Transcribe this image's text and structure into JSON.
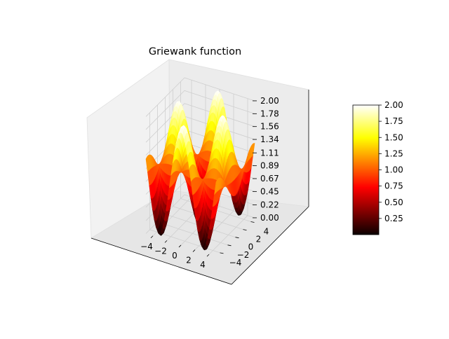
{
  "chart_data": {
    "type": "surface",
    "title": "Griewank function",
    "function": "1 + (x^2 + y^2)/4000 - cos(x)*cos(y/sqrt(2))",
    "x_range": [
      -5,
      5
    ],
    "y_range": [
      -5,
      5
    ],
    "grid": true,
    "colormap": "hot",
    "x_ticks": [
      "−4",
      "−2",
      "0",
      "2",
      "4"
    ],
    "y_ticks": [
      "−4",
      "−2",
      "0",
      "2",
      "4"
    ],
    "z_ticks": [
      "0.00",
      "0.22",
      "0.45",
      "0.67",
      "0.89",
      "1.11",
      "1.34",
      "1.56",
      "1.78",
      "2.00"
    ],
    "zlim": [
      0,
      2
    ],
    "colorbar": {
      "range": [
        0.0,
        2.0
      ],
      "ticks": [
        "0.25",
        "0.50",
        "0.75",
        "1.00",
        "1.25",
        "1.50",
        "1.75",
        "2.00"
      ]
    }
  }
}
